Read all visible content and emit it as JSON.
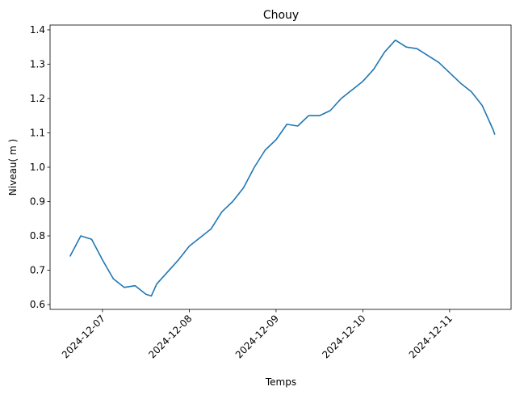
{
  "chart_data": {
    "type": "line",
    "title": "Chouy",
    "x_label": "Temps",
    "y_label": "Niveau( m )",
    "color": "#1f77b4",
    "x": [
      "2024-12-06 15:00",
      "2024-12-06 18:00",
      "2024-12-06 21:00",
      "2024-12-07 00:00",
      "2024-12-07 03:00",
      "2024-12-07 06:00",
      "2024-12-07 09:00",
      "2024-12-07 12:00",
      "2024-12-07 13:30",
      "2024-12-07 15:00",
      "2024-12-07 18:00",
      "2024-12-07 21:00",
      "2024-12-08 00:00",
      "2024-12-08 03:00",
      "2024-12-08 06:00",
      "2024-12-08 09:00",
      "2024-12-08 12:00",
      "2024-12-08 15:00",
      "2024-12-08 18:00",
      "2024-12-08 21:00",
      "2024-12-09 00:00",
      "2024-12-09 03:00",
      "2024-12-09 06:00",
      "2024-12-09 09:00",
      "2024-12-09 12:00",
      "2024-12-09 15:00",
      "2024-12-09 18:00",
      "2024-12-09 21:00",
      "2024-12-10 00:00",
      "2024-12-10 03:00",
      "2024-12-10 06:00",
      "2024-12-10 09:00",
      "2024-12-10 12:00",
      "2024-12-10 15:00",
      "2024-12-10 18:00",
      "2024-12-10 21:00",
      "2024-12-11 00:00",
      "2024-12-11 03:00",
      "2024-12-11 06:00",
      "2024-12-11 09:00",
      "2024-12-11 12:00",
      "2024-12-11 12:30"
    ],
    "values": [
      0.74,
      0.8,
      0.79,
      0.73,
      0.675,
      0.65,
      0.655,
      0.63,
      0.625,
      0.66,
      0.695,
      0.73,
      0.77,
      0.795,
      0.82,
      0.87,
      0.9,
      0.94,
      1.0,
      1.05,
      1.08,
      1.125,
      1.12,
      1.15,
      1.15,
      1.165,
      1.2,
      1.225,
      1.25,
      1.285,
      1.335,
      1.37,
      1.35,
      1.345,
      1.325,
      1.305,
      1.275,
      1.245,
      1.22,
      1.18,
      1.11,
      1.095
    ],
    "xlim": [
      "2024-12-06 09:30",
      "2024-12-11 17:00"
    ],
    "xticks": [
      "2024-12-07",
      "2024-12-08",
      "2024-12-09",
      "2024-12-10",
      "2024-12-11"
    ],
    "ylim": [
      0.586,
      1.414
    ],
    "yticks": [
      0.6,
      0.7,
      0.8,
      0.9,
      {
        "value": 1,
        "label": "1.0"
      },
      1.1,
      1.2,
      1.3,
      1.4
    ]
  }
}
